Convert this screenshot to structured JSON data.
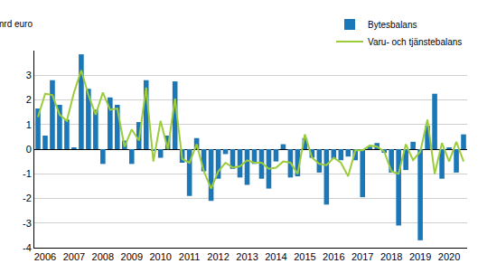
{
  "chart_data": {
    "type": "bar",
    "ylabel": "mrd euro",
    "categories": [
      null,
      "2006",
      null,
      null,
      null,
      "2007",
      null,
      null,
      null,
      "2008",
      null,
      null,
      null,
      "2009",
      null,
      null,
      null,
      "2010",
      null,
      null,
      null,
      "2011",
      null,
      null,
      null,
      "2012",
      null,
      null,
      null,
      "2013",
      null,
      null,
      null,
      "2014",
      null,
      null,
      null,
      "2015",
      null,
      null,
      null,
      "2016",
      null,
      null,
      null,
      "2017",
      null,
      null,
      null,
      "2018",
      null,
      null,
      null,
      "2019",
      null,
      null,
      null,
      "2020",
      null,
      null
    ],
    "series": [
      {
        "name": "Bytesbalans",
        "type": "bar",
        "color": "#1a78b8",
        "values": [
          1.65,
          0.55,
          2.8,
          1.8,
          1.2,
          0.05,
          3.85,
          2.45,
          1.6,
          -0.6,
          2.1,
          1.8,
          0.35,
          -0.6,
          1.1,
          2.8,
          -0.05,
          -0.35,
          0.55,
          2.75,
          -0.55,
          -1.9,
          0.45,
          -0.9,
          -2.1,
          -1.2,
          -0.2,
          -0.8,
          -1.15,
          -1.45,
          -0.6,
          -1.2,
          -1.6,
          -0.5,
          0.2,
          -1.15,
          -1.1,
          0.45,
          -0.35,
          -0.95,
          -2.25,
          -0.4,
          -0.45,
          -0.3,
          -0.45,
          -1.95,
          0.1,
          0.25,
          -0.15,
          -0.95,
          -3.1,
          -0.85,
          0.3,
          -3.7,
          0.95,
          2.25,
          -1.2,
          0.05,
          -0.95,
          0.6
        ]
      },
      {
        "name": "Varu- och tjänstebalans",
        "type": "line",
        "color": "#9ccc3c",
        "values": [
          1.3,
          2.25,
          2.2,
          1.4,
          1.15,
          2.3,
          3.2,
          2.2,
          1.4,
          2.3,
          1.6,
          1.65,
          0.1,
          0.8,
          0.35,
          2.5,
          -0.5,
          1.15,
          0,
          2.05,
          -0.4,
          -0.55,
          0.2,
          -0.9,
          -1.6,
          -0.9,
          -0.55,
          -0.75,
          -0.7,
          -0.45,
          -0.55,
          -0.55,
          -0.8,
          -0.75,
          -0.5,
          -0.55,
          -1.0,
          0.6,
          -0.35,
          -0.6,
          -0.65,
          -0.35,
          -0.55,
          -1.1,
          -0.05,
          -0.05,
          0.15,
          0.1,
          -0.1,
          -0.9,
          -1.0,
          0.2,
          -0.45,
          -0.1,
          1.2,
          -1.0,
          0.25,
          -0.5,
          0.3,
          -0.5
        ]
      }
    ],
    "ylim": [
      -4,
      4
    ],
    "yticks": [
      -4,
      -3,
      -2,
      -1,
      0,
      1,
      2,
      3
    ],
    "grid": true,
    "legend": "upper right"
  }
}
